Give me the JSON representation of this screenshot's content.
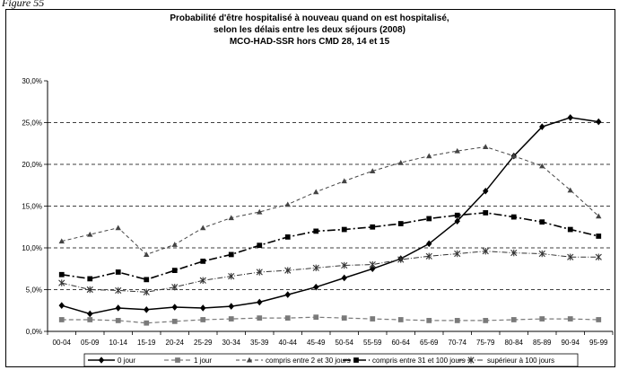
{
  "figure_label": "Figure 55",
  "chart_data": {
    "type": "line",
    "title_lines": [
      "Probabilité d'être hospitalisé à nouveau quand on est hospitalisé,",
      "selon les délais entre les deux séjours (2008)",
      "MCO-HAD-SSR hors CMD 28, 14 et 15"
    ],
    "xlabel": "",
    "ylabel": "",
    "ylim": [
      0,
      30
    ],
    "yticks": [
      "0,0%",
      "5,0%",
      "10,0%",
      "15,0%",
      "20,0%",
      "25,0%",
      "30,0%"
    ],
    "grid": "horizontal-dashed",
    "legend_position": "bottom",
    "categories": [
      "00-04",
      "05-09",
      "10-14",
      "15-19",
      "20-24",
      "25-29",
      "30-34",
      "35-39",
      "40-44",
      "45-49",
      "50-54",
      "55-59",
      "60-64",
      "65-69",
      "70-74",
      "75-79",
      "80-84",
      "85-89",
      "90-94",
      "95-99"
    ],
    "series": [
      {
        "name": "0 jour",
        "color": "#000000",
        "dash": "",
        "width": 1.5,
        "marker": "diamond",
        "values": [
          3.1,
          2.1,
          2.8,
          2.6,
          2.9,
          2.8,
          3.0,
          3.5,
          4.4,
          5.3,
          6.4,
          7.5,
          8.7,
          10.5,
          13.2,
          16.8,
          21.0,
          24.5,
          25.6,
          25.1
        ]
      },
      {
        "name": "1 jour",
        "color": "#7a7a7a",
        "dash": "5,3",
        "width": 1.2,
        "marker": "square",
        "values": [
          1.4,
          1.4,
          1.3,
          1.0,
          1.2,
          1.4,
          1.5,
          1.6,
          1.6,
          1.7,
          1.6,
          1.5,
          1.4,
          1.3,
          1.3,
          1.3,
          1.4,
          1.5,
          1.5,
          1.4
        ]
      },
      {
        "name": "compris entre 2 et 30 jours",
        "color": "#444444",
        "dash": "4,3",
        "width": 1.0,
        "marker": "triangle",
        "values": [
          10.8,
          11.6,
          12.4,
          9.2,
          10.4,
          12.4,
          13.6,
          14.3,
          15.2,
          16.7,
          18.0,
          19.2,
          20.2,
          21.0,
          21.6,
          22.1,
          21.0,
          19.8,
          16.9,
          13.8
        ]
      },
      {
        "name": "compris entre 31 et 100 jours",
        "color": "#000000",
        "dash": "9,3,2,3",
        "width": 1.6,
        "marker": "square",
        "values": [
          6.8,
          6.3,
          7.1,
          6.2,
          7.3,
          8.4,
          9.2,
          10.3,
          11.3,
          12.0,
          12.2,
          12.5,
          12.9,
          13.5,
          13.9,
          14.2,
          13.7,
          13.1,
          12.2,
          11.4
        ]
      },
      {
        "name": "supérieur à 100 jours",
        "color": "#333333",
        "dash": "6,2,1,2",
        "width": 1.0,
        "marker": "star",
        "values": [
          5.8,
          5.0,
          4.9,
          4.7,
          5.3,
          6.1,
          6.6,
          7.1,
          7.3,
          7.6,
          7.9,
          8.0,
          8.6,
          9.0,
          9.3,
          9.6,
          9.4,
          9.3,
          8.9,
          8.9
        ]
      }
    ]
  }
}
